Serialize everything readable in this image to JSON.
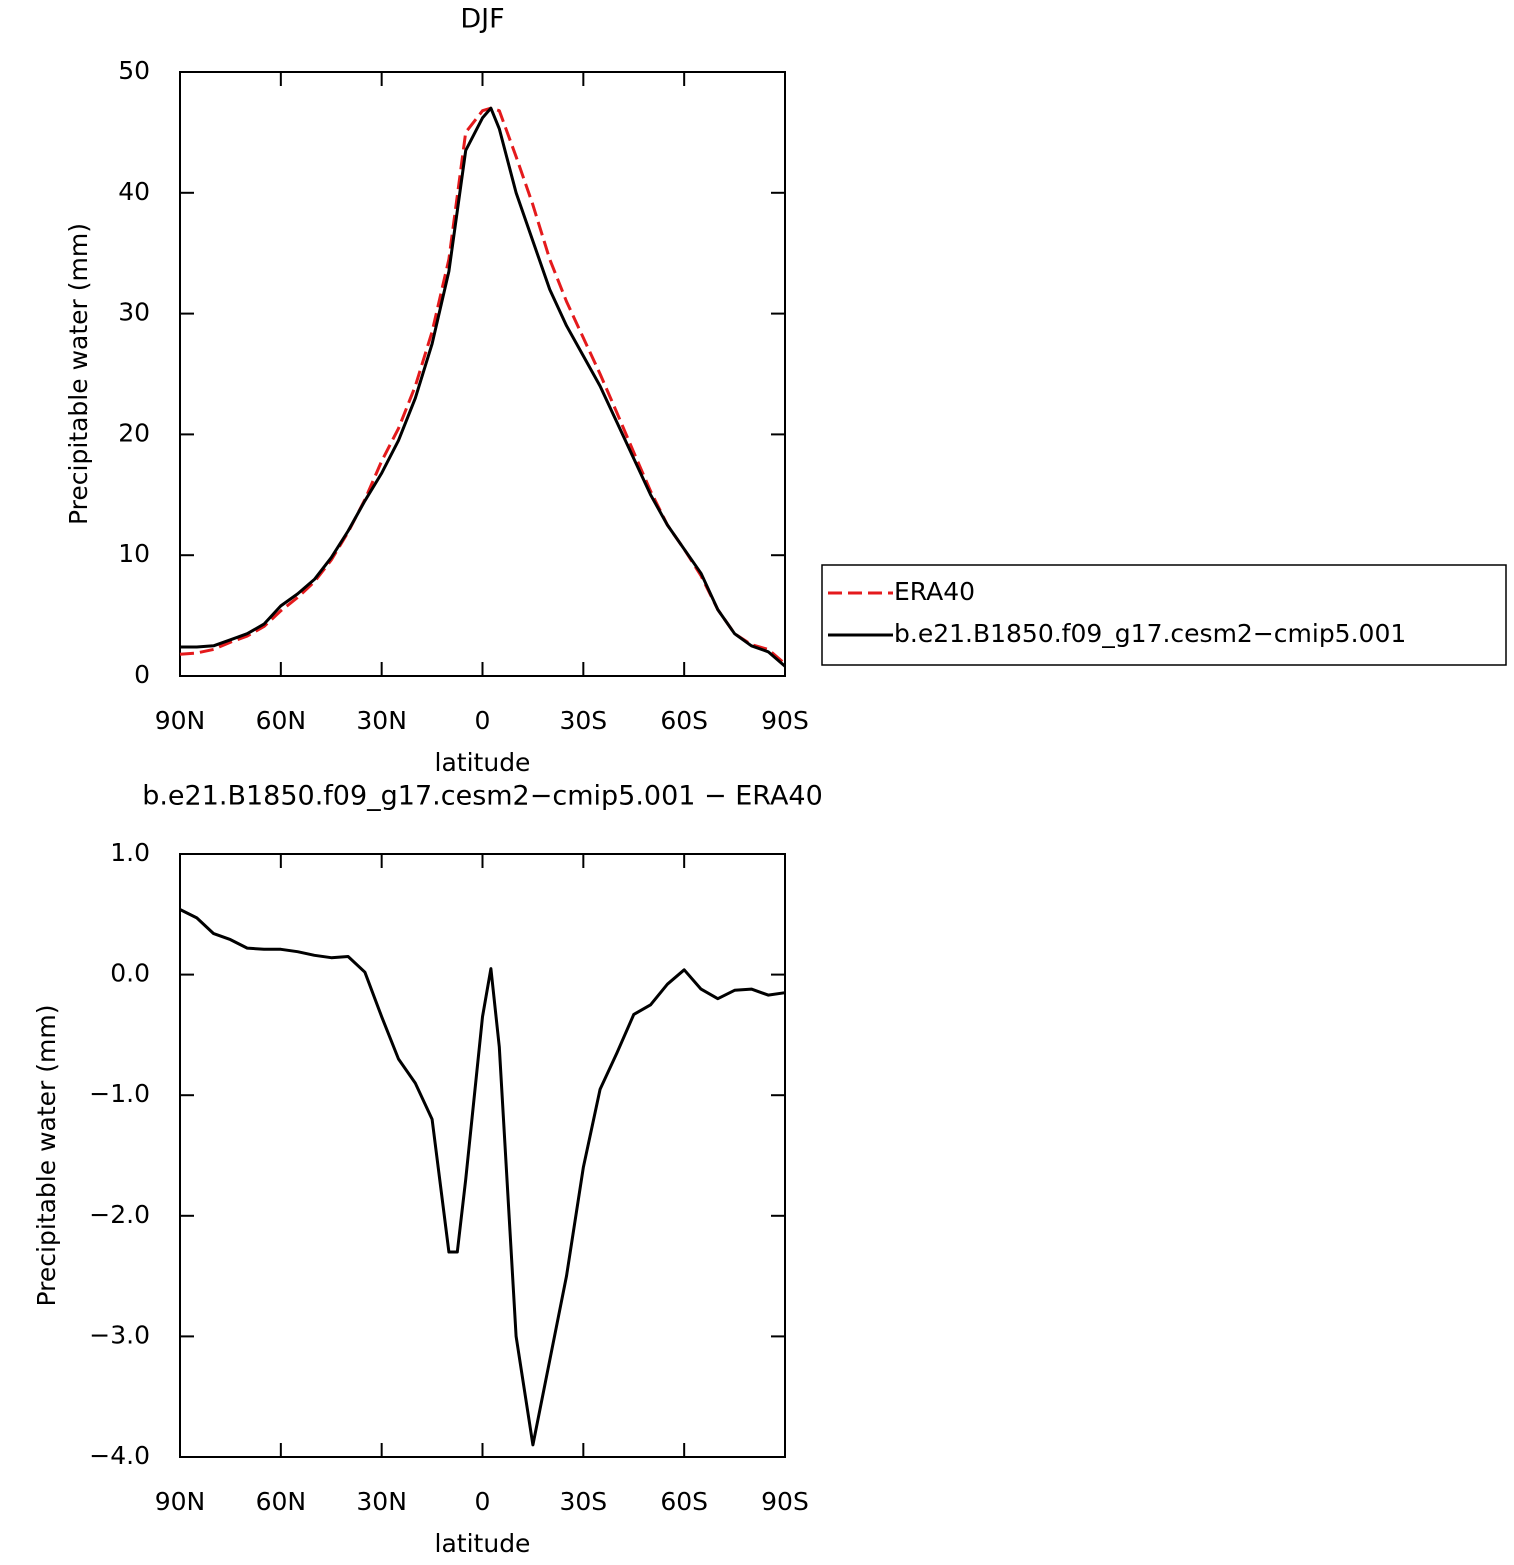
{
  "chart_data": [
    {
      "type": "line",
      "title": "DJF",
      "x_label": "latitude",
      "y_label": "Precipitable water (mm)",
      "x": [
        90,
        85,
        80,
        75,
        70,
        65,
        60,
        55,
        50,
        45,
        40,
        35,
        30,
        25,
        20,
        15,
        10,
        5,
        0,
        -2.5,
        -5,
        -10,
        -15,
        -20,
        -25,
        -30,
        -35,
        -40,
        -45,
        -50,
        -55,
        -60,
        -65,
        -70,
        -75,
        -80,
        -85,
        -90
      ],
      "xlim": [
        90,
        -90
      ],
      "xticks": [
        {
          "value": 90,
          "label": "90N"
        },
        {
          "value": 60,
          "label": "60N"
        },
        {
          "value": 30,
          "label": "30N"
        },
        0,
        {
          "value": -30,
          "label": "30S"
        },
        {
          "value": -60,
          "label": "60S"
        },
        {
          "value": -90,
          "label": "90S"
        }
      ],
      "ylim": [
        0,
        50
      ],
      "yticks": [
        0,
        10,
        20,
        30,
        40,
        50
      ],
      "legend": "right",
      "series": [
        {
          "name": "ERA40",
          "color": "#e41a1c",
          "line_style": "dashed",
          "values": [
            1.8,
            1.9,
            2.2,
            2.8,
            3.3,
            4.1,
            5.4,
            6.5,
            7.8,
            9.6,
            11.9,
            14.6,
            17.8,
            20.5,
            24,
            28.5,
            34.5,
            45,
            46.8,
            47,
            46.8,
            43,
            39,
            34.5,
            31,
            28,
            25,
            21.8,
            18.5,
            15.3,
            12.5,
            10.5,
            8.3,
            5.5,
            3.5,
            2.6,
            2.2,
            1.0
          ]
        },
        {
          "name": "b.e21.B1850.f09_g17.cesm2−cmip5.001",
          "color": "#000000",
          "line_style": "solid",
          "values": [
            2.4,
            2.4,
            2.5,
            3.0,
            3.5,
            4.3,
            5.8,
            6.8,
            8.0,
            9.8,
            12.0,
            14.5,
            16.8,
            19.5,
            23.0,
            27.5,
            33.5,
            43.5,
            46.2,
            47,
            45.3,
            40,
            36,
            32,
            29,
            26.5,
            24,
            21,
            18,
            15,
            12.5,
            10.5,
            8.5,
            5.5,
            3.5,
            2.5,
            2.0,
            0.8
          ]
        }
      ]
    },
    {
      "type": "line",
      "title": "b.e21.B1850.f09_g17.cesm2−cmip5.001  −  ERA40",
      "x_label": "latitude",
      "y_label": "Precipitable water (mm)",
      "x": [
        90,
        85,
        80,
        75,
        70,
        65,
        60,
        55,
        50,
        45,
        40,
        35,
        30,
        25,
        20,
        15,
        10,
        7.5,
        5,
        0,
        -2.5,
        -5,
        -10,
        -15,
        -20,
        -25,
        -30,
        -35,
        -40,
        -45,
        -50,
        -55,
        -60,
        -65,
        -70,
        -75,
        -80,
        -85,
        -90
      ],
      "xlim": [
        90,
        -90
      ],
      "xticks": [
        {
          "value": 90,
          "label": "90N"
        },
        {
          "value": 60,
          "label": "60N"
        },
        {
          "value": 30,
          "label": "30N"
        },
        0,
        {
          "value": -30,
          "label": "30S"
        },
        {
          "value": -60,
          "label": "60S"
        },
        {
          "value": -90,
          "label": "90S"
        }
      ],
      "ylim": [
        -4,
        1
      ],
      "yticks": [
        {
          "value": 1,
          "label": "1.0"
        },
        {
          "value": 0,
          "label": "0.0"
        },
        {
          "value": -1,
          "label": "−1.0"
        },
        {
          "value": -2,
          "label": "−2.0"
        },
        {
          "value": -3,
          "label": "−3.0"
        },
        {
          "value": -4,
          "label": "−4.0"
        }
      ],
      "series": [
        {
          "color": "#000000",
          "line_style": "solid",
          "values": [
            0.54,
            0.47,
            0.34,
            0.29,
            0.22,
            0.21,
            0.21,
            0.19,
            0.16,
            0.14,
            0.15,
            0.02,
            -0.35,
            -0.7,
            -0.9,
            -1.2,
            -2.3,
            -2.3,
            -1.7,
            -0.35,
            0.05,
            -0.6,
            -3.0,
            -3.9,
            -3.2,
            -2.5,
            -1.6,
            -0.95,
            -0.65,
            -0.33,
            -0.25,
            -0.08,
            0.04,
            -0.12,
            -0.2,
            -0.13,
            -0.12,
            -0.17,
            -0.15
          ]
        }
      ]
    }
  ]
}
